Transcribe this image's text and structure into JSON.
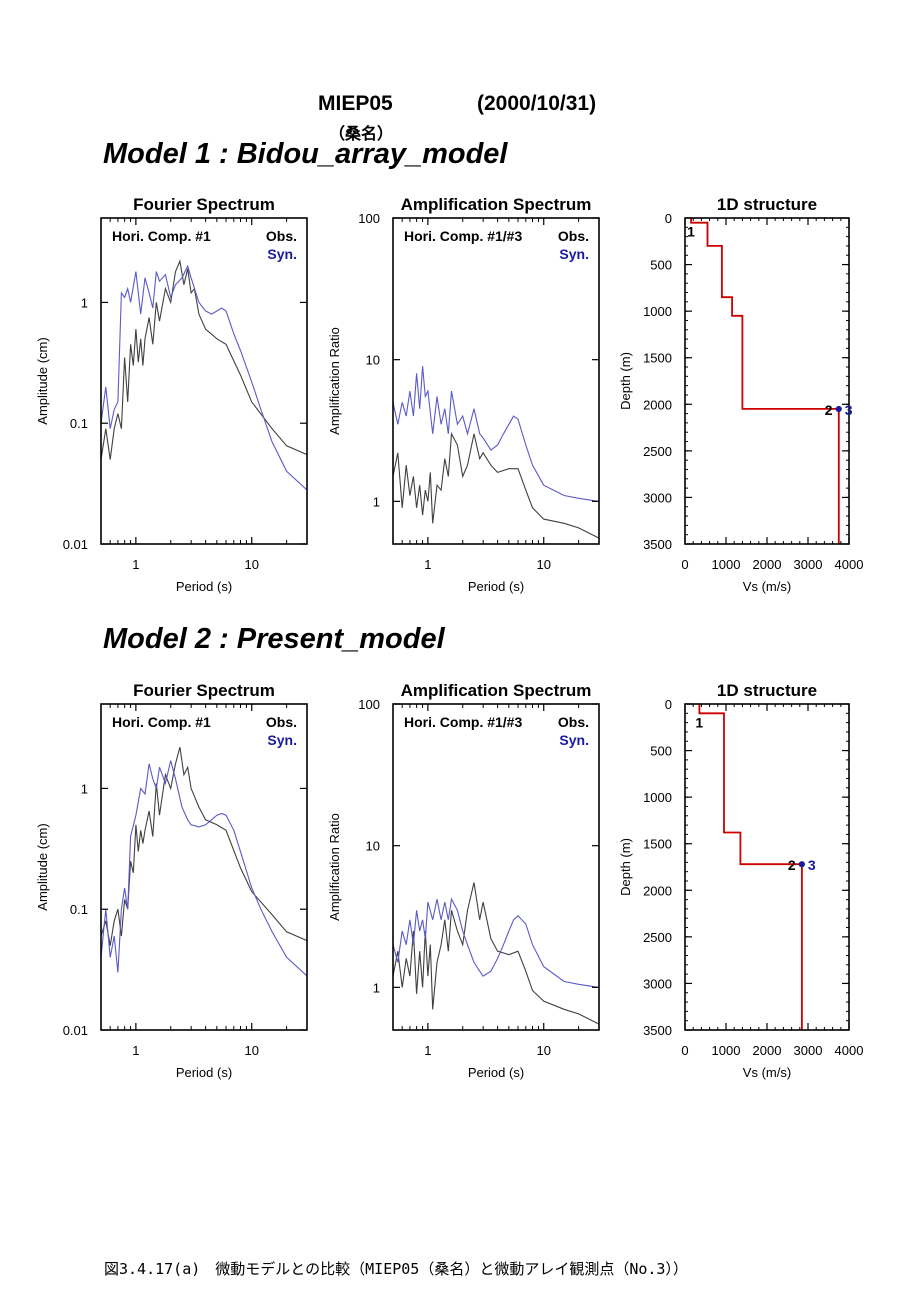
{
  "header": {
    "station": "MIEP05",
    "date": "(2000/10/31)",
    "place": "（桑名）"
  },
  "models": [
    {
      "title": "Model 1 : Bidou_array_model"
    },
    {
      "title": "Model 2 : Present_model"
    }
  ],
  "caption": "図3.4.17(a)　微動モデルとの比較（MIEP05（桑名）と微動アレイ観測点（No.3））",
  "colors": {
    "obs": "#404040",
    "syn": "#5a5ac8",
    "structure": "#cc0000",
    "label_blue": "#1a1aa0"
  },
  "chart_data": [
    {
      "type": "line",
      "model": 1,
      "title": "Fourier Spectrum",
      "inner_label": "Hori. Comp. #1",
      "xlabel": "Period (s)",
      "ylabel": "Amplitude (cm)",
      "xscale": "log",
      "yscale": "log",
      "xlim": [
        0.5,
        30
      ],
      "ylim": [
        0.01,
        5
      ],
      "xticks": [
        1,
        10
      ],
      "yticks": [
        0.01,
        0.1,
        1
      ],
      "legend": "top-right",
      "series": [
        {
          "name": "Obs.",
          "x": [
            0.5,
            0.55,
            0.6,
            0.65,
            0.7,
            0.75,
            0.8,
            0.85,
            0.9,
            0.95,
            1.0,
            1.05,
            1.1,
            1.15,
            1.2,
            1.3,
            1.4,
            1.5,
            1.6,
            1.8,
            2.0,
            2.2,
            2.4,
            2.6,
            2.8,
            3.0,
            3.2,
            3.5,
            4.0,
            5.0,
            6.0,
            8.0,
            10,
            15,
            20,
            30
          ],
          "y": [
            0.05,
            0.09,
            0.05,
            0.09,
            0.12,
            0.09,
            0.35,
            0.15,
            0.45,
            0.3,
            0.6,
            0.32,
            0.5,
            0.3,
            0.5,
            0.75,
            0.45,
            1.0,
            0.7,
            1.3,
            1.0,
            1.8,
            2.2,
            1.4,
            1.9,
            1.2,
            1.3,
            0.8,
            0.6,
            0.5,
            0.45,
            0.25,
            0.15,
            0.09,
            0.065,
            0.055
          ]
        },
        {
          "name": "Syn.",
          "x": [
            0.5,
            0.55,
            0.6,
            0.65,
            0.7,
            0.75,
            0.8,
            0.85,
            0.9,
            1.0,
            1.1,
            1.2,
            1.3,
            1.4,
            1.5,
            1.6,
            1.8,
            2.0,
            2.2,
            2.5,
            2.8,
            3.0,
            3.5,
            4.0,
            4.5,
            5.0,
            5.5,
            6.0,
            7.0,
            8.0,
            10,
            12,
            15,
            20,
            30
          ],
          "y": [
            0.1,
            0.2,
            0.09,
            0.13,
            0.15,
            1.2,
            1.1,
            1.3,
            1.0,
            1.8,
            0.8,
            1.6,
            1.2,
            0.9,
            1.8,
            1.5,
            1.7,
            1.1,
            1.4,
            1.6,
            2.0,
            1.6,
            1.0,
            0.85,
            0.8,
            0.85,
            0.9,
            0.85,
            0.55,
            0.4,
            0.22,
            0.13,
            0.07,
            0.04,
            0.028
          ]
        }
      ]
    },
    {
      "type": "line",
      "model": 1,
      "title": "Amplification Spectrum",
      "inner_label": "Hori. Comp. #1/#3",
      "xlabel": "Period (s)",
      "ylabel": "Amplification Ratio",
      "xscale": "log",
      "yscale": "log",
      "xlim": [
        0.5,
        30
      ],
      "ylim": [
        0.5,
        100
      ],
      "xticks": [
        1,
        10
      ],
      "yticks": [
        1,
        10,
        100
      ],
      "legend": "top-right",
      "series": [
        {
          "name": "Obs.",
          "x": [
            0.5,
            0.55,
            0.6,
            0.65,
            0.7,
            0.75,
            0.8,
            0.85,
            0.9,
            0.95,
            1.0,
            1.05,
            1.1,
            1.2,
            1.3,
            1.4,
            1.5,
            1.6,
            1.8,
            2.0,
            2.2,
            2.5,
            2.8,
            3.0,
            3.5,
            4.0,
            5.0,
            6.0,
            7.0,
            8.0,
            10,
            15,
            20,
            30
          ],
          "y": [
            1.5,
            2.2,
            0.9,
            1.8,
            1.1,
            1.5,
            0.9,
            1.3,
            0.8,
            1.2,
            1.0,
            1.6,
            0.7,
            1.3,
            1.2,
            2.0,
            1.5,
            3.0,
            2.5,
            1.5,
            1.8,
            3.0,
            2.0,
            2.2,
            1.8,
            1.6,
            1.7,
            1.7,
            1.2,
            0.9,
            0.75,
            0.7,
            0.65,
            0.55
          ]
        },
        {
          "name": "Syn.",
          "x": [
            0.5,
            0.55,
            0.6,
            0.65,
            0.7,
            0.75,
            0.8,
            0.85,
            0.9,
            0.95,
            1.0,
            1.1,
            1.2,
            1.3,
            1.4,
            1.5,
            1.6,
            1.8,
            2.0,
            2.2,
            2.5,
            2.8,
            3.0,
            3.5,
            4.0,
            4.5,
            5.0,
            5.5,
            6.0,
            7.0,
            8.0,
            10,
            15,
            20,
            30
          ],
          "y": [
            5.0,
            3.5,
            5.0,
            4.0,
            6.0,
            4.0,
            8.0,
            4.5,
            9.0,
            5.5,
            6.0,
            3.0,
            5.5,
            3.5,
            4.5,
            3.0,
            6.0,
            3.5,
            4.0,
            3.0,
            4.5,
            3.0,
            2.8,
            2.3,
            2.5,
            3.0,
            3.5,
            4.0,
            3.8,
            2.5,
            1.8,
            1.3,
            1.1,
            1.05,
            1.0
          ]
        }
      ]
    },
    {
      "type": "line",
      "model": 1,
      "title": "1D structure",
      "xlabel": "Vs (m/s)",
      "ylabel": "Depth (m)",
      "xlim": [
        0,
        4000
      ],
      "ylim": [
        3500,
        0
      ],
      "xticks": [
        0,
        1000,
        2000,
        3000,
        4000
      ],
      "yticks": [
        0,
        500,
        1000,
        1500,
        2000,
        2500,
        3000,
        3500
      ],
      "series": [
        {
          "name": "Vs profile",
          "x": [
            150,
            150,
            550,
            550,
            900,
            900,
            1150,
            1150,
            1400,
            1400,
            3750,
            3750
          ],
          "y": [
            0,
            50,
            50,
            300,
            300,
            850,
            850,
            1050,
            1050,
            2050,
            2050,
            3500
          ]
        }
      ],
      "annotations": [
        {
          "label": "1",
          "x": 150,
          "y": 50,
          "color": "black"
        },
        {
          "label": "2",
          "x": 3750,
          "y": 2050,
          "color": "black"
        },
        {
          "label": "3",
          "x": 3750,
          "y": 2050,
          "color": "blue"
        }
      ]
    },
    {
      "type": "line",
      "model": 2,
      "title": "Fourier Spectrum",
      "inner_label": "Hori. Comp. #1",
      "xlabel": "Period (s)",
      "ylabel": "Amplitude (cm)",
      "xscale": "log",
      "yscale": "log",
      "xlim": [
        0.5,
        30
      ],
      "ylim": [
        0.01,
        5
      ],
      "xticks": [
        1,
        10
      ],
      "yticks": [
        0.01,
        0.1,
        1
      ],
      "legend": "top-right",
      "series": [
        {
          "name": "Obs.",
          "x": [
            0.5,
            0.55,
            0.6,
            0.65,
            0.7,
            0.75,
            0.8,
            0.85,
            0.9,
            0.95,
            1.0,
            1.05,
            1.1,
            1.15,
            1.2,
            1.3,
            1.4,
            1.5,
            1.6,
            1.8,
            2.0,
            2.2,
            2.4,
            2.6,
            2.8,
            3.0,
            3.5,
            4.0,
            5.0,
            6.0,
            8.0,
            10,
            15,
            20,
            30
          ],
          "y": [
            0.06,
            0.08,
            0.05,
            0.08,
            0.1,
            0.06,
            0.12,
            0.1,
            0.25,
            0.2,
            0.5,
            0.3,
            0.45,
            0.35,
            0.45,
            0.65,
            0.4,
            1.1,
            0.6,
            1.3,
            1.0,
            1.6,
            2.2,
            1.3,
            1.5,
            1.0,
            0.7,
            0.55,
            0.5,
            0.45,
            0.22,
            0.14,
            0.09,
            0.065,
            0.055
          ]
        },
        {
          "name": "Syn.",
          "x": [
            0.5,
            0.55,
            0.6,
            0.65,
            0.7,
            0.75,
            0.8,
            0.85,
            0.9,
            1.0,
            1.1,
            1.2,
            1.3,
            1.4,
            1.5,
            1.6,
            1.8,
            2.0,
            2.2,
            2.5,
            2.8,
            3.0,
            3.5,
            4.0,
            4.5,
            5.0,
            5.5,
            6.0,
            7.0,
            8.0,
            10,
            12,
            15,
            20,
            30
          ],
          "y": [
            0.04,
            0.1,
            0.04,
            0.06,
            0.03,
            0.1,
            0.15,
            0.1,
            0.4,
            0.6,
            1.0,
            0.9,
            1.6,
            1.2,
            1.0,
            1.5,
            1.1,
            1.7,
            1.2,
            0.7,
            0.55,
            0.5,
            0.48,
            0.5,
            0.55,
            0.6,
            0.62,
            0.6,
            0.45,
            0.3,
            0.15,
            0.1,
            0.065,
            0.04,
            0.028
          ]
        }
      ]
    },
    {
      "type": "line",
      "model": 2,
      "title": "Amplification Spectrum",
      "inner_label": "Hori. Comp. #1/#3",
      "xlabel": "Period (s)",
      "ylabel": "Amplification Ratio",
      "xscale": "log",
      "yscale": "log",
      "xlim": [
        0.5,
        30
      ],
      "ylim": [
        0.5,
        100
      ],
      "xticks": [
        1,
        10
      ],
      "yticks": [
        1,
        10,
        100
      ],
      "legend": "top-right",
      "series": [
        {
          "name": "Obs.",
          "x": [
            0.5,
            0.55,
            0.6,
            0.65,
            0.7,
            0.75,
            0.8,
            0.85,
            0.9,
            0.95,
            1.0,
            1.05,
            1.1,
            1.2,
            1.3,
            1.4,
            1.5,
            1.6,
            1.8,
            2.0,
            2.2,
            2.5,
            2.8,
            3.0,
            3.5,
            4.0,
            5.0,
            6.0,
            7.0,
            8.0,
            10,
            15,
            20,
            30
          ],
          "y": [
            1.2,
            1.8,
            1.0,
            1.6,
            1.2,
            2.5,
            0.9,
            1.8,
            1.0,
            2.5,
            1.2,
            2.0,
            0.7,
            1.5,
            2.0,
            3.0,
            1.8,
            3.5,
            2.5,
            2.0,
            3.5,
            5.5,
            3.0,
            4.0,
            2.2,
            1.8,
            1.7,
            1.8,
            1.3,
            0.95,
            0.8,
            0.7,
            0.65,
            0.55
          ]
        },
        {
          "name": "Syn.",
          "x": [
            0.5,
            0.55,
            0.6,
            0.65,
            0.7,
            0.75,
            0.8,
            0.85,
            0.9,
            0.95,
            1.0,
            1.1,
            1.2,
            1.3,
            1.4,
            1.5,
            1.6,
            1.8,
            2.0,
            2.2,
            2.5,
            2.8,
            3.0,
            3.5,
            4.0,
            4.5,
            5.0,
            5.5,
            6.0,
            7.0,
            8.0,
            10,
            15,
            20,
            30
          ],
          "y": [
            2.0,
            1.5,
            2.5,
            2.0,
            3.0,
            2.0,
            3.5,
            2.5,
            3.0,
            2.2,
            4.0,
            3.0,
            4.2,
            3.0,
            4.0,
            3.0,
            4.2,
            3.5,
            2.5,
            2.0,
            1.5,
            1.3,
            1.2,
            1.3,
            1.6,
            2.0,
            2.5,
            3.0,
            3.2,
            2.8,
            2.0,
            1.4,
            1.1,
            1.05,
            1.0
          ]
        }
      ]
    },
    {
      "type": "line",
      "model": 2,
      "title": "1D structure",
      "xlabel": "Vs (m/s)",
      "ylabel": "Depth (m)",
      "xlim": [
        0,
        4000
      ],
      "ylim": [
        3500,
        0
      ],
      "xticks": [
        0,
        1000,
        2000,
        3000,
        4000
      ],
      "yticks": [
        0,
        500,
        1000,
        1500,
        2000,
        2500,
        3000,
        3500
      ],
      "series": [
        {
          "name": "Vs profile",
          "x": [
            350,
            350,
            950,
            950,
            1350,
            1350,
            2850,
            2850
          ],
          "y": [
            0,
            100,
            100,
            1380,
            1380,
            1720,
            1720,
            3500
          ]
        }
      ],
      "annotations": [
        {
          "label": "1",
          "x": 350,
          "y": 100,
          "color": "black"
        },
        {
          "label": "2",
          "x": 2850,
          "y": 1720,
          "color": "black"
        },
        {
          "label": "3",
          "x": 2850,
          "y": 1720,
          "color": "blue"
        }
      ]
    }
  ]
}
